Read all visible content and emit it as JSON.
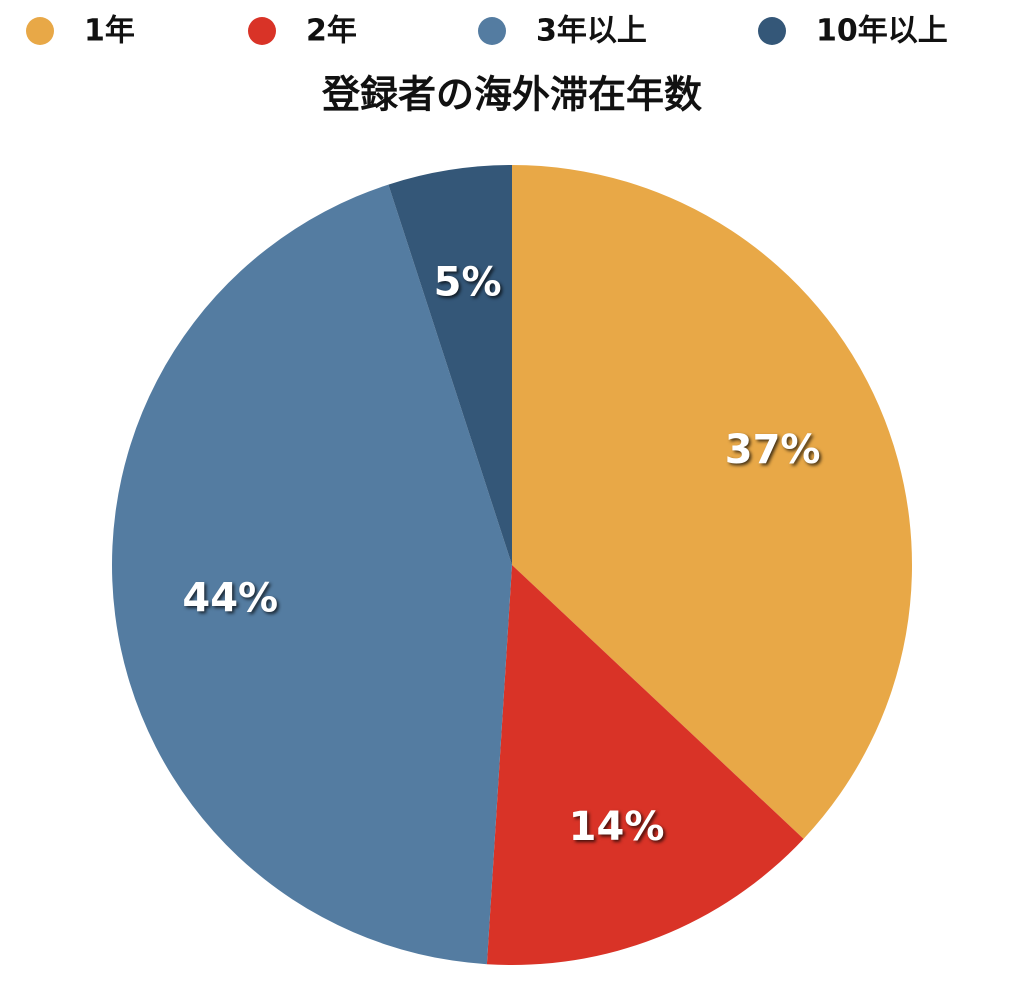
{
  "chart_data": {
    "type": "pie",
    "title": "登録者の海外滞在年数",
    "categories": [
      "1年",
      "2年",
      "3年以上",
      "10年以上"
    ],
    "values": [
      37,
      14,
      44,
      5
    ],
    "value_labels": [
      "37%",
      "14%",
      "44%",
      "5%"
    ],
    "colors": [
      "#e8a847",
      "#d93327",
      "#547ca1",
      "#345778"
    ]
  }
}
